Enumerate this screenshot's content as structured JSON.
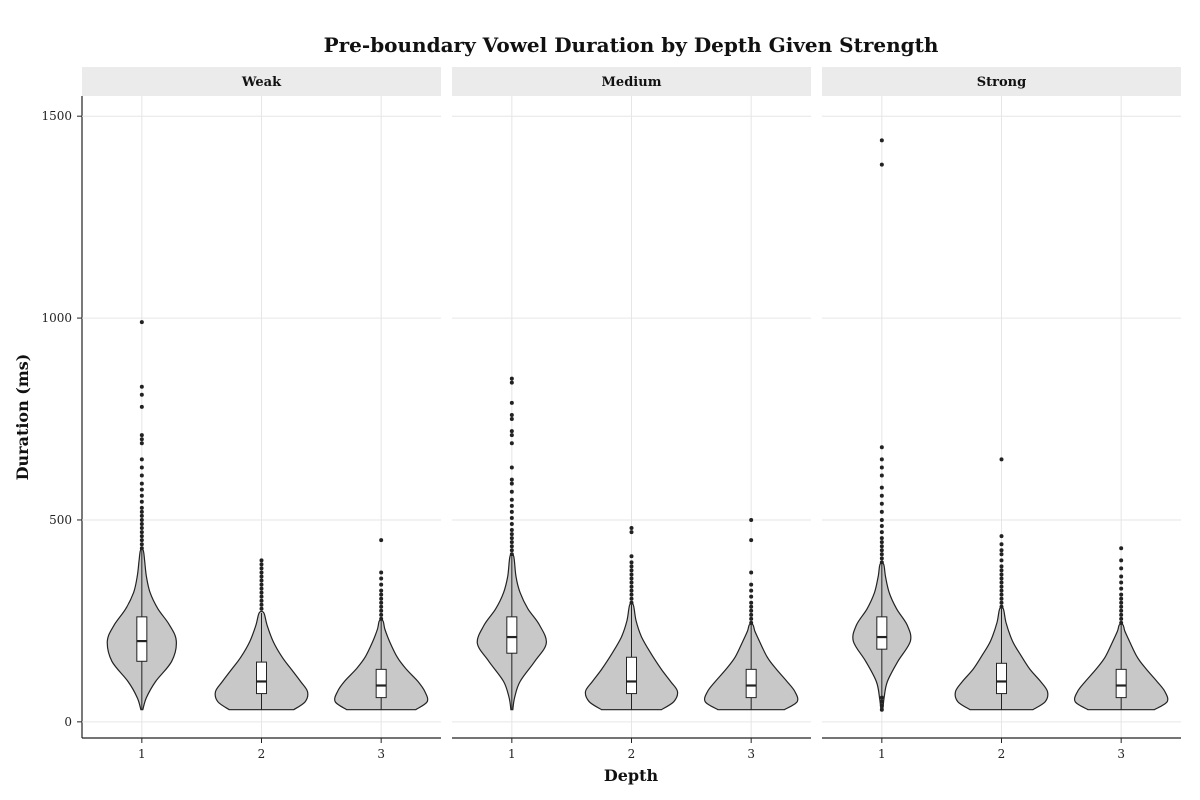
{
  "chart_data": {
    "type": "violin",
    "title": "Pre-boundary Vowel Duration by Depth Given Strength",
    "xlabel": "Depth",
    "ylabel": "Duration (ms)",
    "ylim": [
      -40,
      1550
    ],
    "yticks": [
      0,
      500,
      1000,
      1500
    ],
    "categories": [
      "1",
      "2",
      "3"
    ],
    "grid": true,
    "colors": {
      "violin_fill": "#c8c8c8",
      "outline": "#222222",
      "box_fill": "#ffffff",
      "strip_bg": "#ebebeb",
      "grid": "#e6e6e6"
    },
    "panels": [
      {
        "name": "Weak",
        "groups": [
          {
            "depth": "1",
            "min": 30,
            "q1": 150,
            "median": 200,
            "q3": 260,
            "whisker_high": 425,
            "density": [
              [
                30,
                0.02
              ],
              [
                60,
                0.1
              ],
              [
                100,
                0.3
              ],
              [
                150,
                0.65
              ],
              [
                200,
                0.75
              ],
              [
                240,
                0.6
              ],
              [
                280,
                0.35
              ],
              [
                320,
                0.18
              ],
              [
                360,
                0.1
              ],
              [
                400,
                0.06
              ],
              [
                425,
                0.03
              ]
            ],
            "outliers": [
              430,
              440,
              450,
              460,
              470,
              480,
              490,
              500,
              510,
              520,
              530,
              545,
              560,
              575,
              590,
              610,
              630,
              650,
              690,
              700,
              710,
              780,
              810,
              830,
              990
            ]
          },
          {
            "depth": "2",
            "min": 30,
            "q1": 70,
            "median": 100,
            "q3": 148,
            "whisker_high": 270,
            "density": [
              [
                30,
                0.7
              ],
              [
                50,
                0.95
              ],
              [
                75,
                1.0
              ],
              [
                100,
                0.85
              ],
              [
                130,
                0.65
              ],
              [
                160,
                0.45
              ],
              [
                200,
                0.25
              ],
              [
                240,
                0.12
              ],
              [
                270,
                0.05
              ]
            ],
            "outliers": [
              280,
              290,
              300,
              310,
              320,
              330,
              340,
              350,
              360,
              370,
              380,
              390,
              400
            ]
          },
          {
            "depth": "3",
            "min": 30,
            "q1": 60,
            "median": 90,
            "q3": 130,
            "whisker_high": 250,
            "density": [
              [
                30,
                0.75
              ],
              [
                50,
                1.0
              ],
              [
                75,
                0.95
              ],
              [
                100,
                0.8
              ],
              [
                130,
                0.55
              ],
              [
                160,
                0.35
              ],
              [
                200,
                0.18
              ],
              [
                230,
                0.08
              ],
              [
                250,
                0.04
              ]
            ],
            "outliers": [
              255,
              265,
              275,
              285,
              295,
              305,
              315,
              325,
              340,
              355,
              370,
              450
            ]
          }
        ]
      },
      {
        "name": "Medium",
        "groups": [
          {
            "depth": "1",
            "min": 30,
            "q1": 170,
            "median": 210,
            "q3": 260,
            "whisker_high": 410,
            "density": [
              [
                30,
                0.02
              ],
              [
                60,
                0.06
              ],
              [
                100,
                0.18
              ],
              [
                150,
                0.5
              ],
              [
                195,
                0.75
              ],
              [
                240,
                0.6
              ],
              [
                280,
                0.35
              ],
              [
                320,
                0.18
              ],
              [
                360,
                0.09
              ],
              [
                410,
                0.04
              ]
            ],
            "outliers": [
              415,
              425,
              435,
              445,
              455,
              465,
              475,
              490,
              505,
              520,
              535,
              550,
              570,
              590,
              600,
              630,
              690,
              710,
              720,
              750,
              760,
              790,
              840,
              850
            ]
          },
          {
            "depth": "2",
            "min": 30,
            "q1": 70,
            "median": 100,
            "q3": 160,
            "whisker_high": 290,
            "density": [
              [
                30,
                0.65
              ],
              [
                50,
                0.92
              ],
              [
                75,
                1.0
              ],
              [
                100,
                0.85
              ],
              [
                130,
                0.65
              ],
              [
                170,
                0.42
              ],
              [
                210,
                0.22
              ],
              [
                250,
                0.1
              ],
              [
                290,
                0.04
              ]
            ],
            "outliers": [
              295,
              305,
              315,
              325,
              335,
              345,
              355,
              365,
              375,
              385,
              395,
              410,
              470,
              480
            ]
          },
          {
            "depth": "3",
            "min": 30,
            "q1": 60,
            "median": 90,
            "q3": 130,
            "whisker_high": 240,
            "density": [
              [
                30,
                0.72
              ],
              [
                50,
                1.0
              ],
              [
                75,
                0.95
              ],
              [
                100,
                0.78
              ],
              [
                130,
                0.55
              ],
              [
                160,
                0.35
              ],
              [
                200,
                0.18
              ],
              [
                225,
                0.08
              ],
              [
                240,
                0.04
              ]
            ],
            "outliers": [
              245,
              255,
              265,
              275,
              285,
              295,
              310,
              325,
              340,
              370,
              450,
              500
            ]
          }
        ]
      },
      {
        "name": "Strong",
        "groups": [
          {
            "depth": "1",
            "min": 30,
            "q1": 180,
            "median": 210,
            "q3": 260,
            "whisker_high": 390,
            "density": [
              [
                30,
                0.02
              ],
              [
                60,
                0.05
              ],
              [
                100,
                0.12
              ],
              [
                150,
                0.35
              ],
              [
                200,
                0.62
              ],
              [
                240,
                0.55
              ],
              [
                280,
                0.32
              ],
              [
                320,
                0.16
              ],
              [
                360,
                0.08
              ],
              [
                390,
                0.04
              ]
            ],
            "outliers": [
              30,
              40,
              50,
              60,
              395,
              405,
              415,
              425,
              435,
              445,
              455,
              470,
              485,
              500,
              520,
              540,
              560,
              580,
              610,
              630,
              650,
              680,
              1380,
              1440
            ]
          },
          {
            "depth": "2",
            "min": 30,
            "q1": 70,
            "median": 100,
            "q3": 145,
            "whisker_high": 280,
            "density": [
              [
                30,
                0.68
              ],
              [
                50,
                0.95
              ],
              [
                75,
                1.0
              ],
              [
                100,
                0.85
              ],
              [
                130,
                0.62
              ],
              [
                165,
                0.42
              ],
              [
                200,
                0.24
              ],
              [
                245,
                0.1
              ],
              [
                280,
                0.04
              ]
            ],
            "outliers": [
              285,
              295,
              305,
              315,
              325,
              335,
              345,
              355,
              365,
              375,
              385,
              400,
              415,
              425,
              440,
              460,
              650
            ]
          },
          {
            "depth": "3",
            "min": 30,
            "q1": 60,
            "median": 90,
            "q3": 130,
            "whisker_high": 240,
            "density": [
              [
                30,
                0.72
              ],
              [
                50,
                1.0
              ],
              [
                75,
                0.95
              ],
              [
                100,
                0.78
              ],
              [
                130,
                0.55
              ],
              [
                160,
                0.35
              ],
              [
                200,
                0.18
              ],
              [
                225,
                0.08
              ],
              [
                240,
                0.04
              ]
            ],
            "outliers": [
              245,
              255,
              265,
              275,
              285,
              295,
              305,
              315,
              330,
              345,
              360,
              380,
              400,
              430
            ]
          }
        ]
      }
    ]
  }
}
